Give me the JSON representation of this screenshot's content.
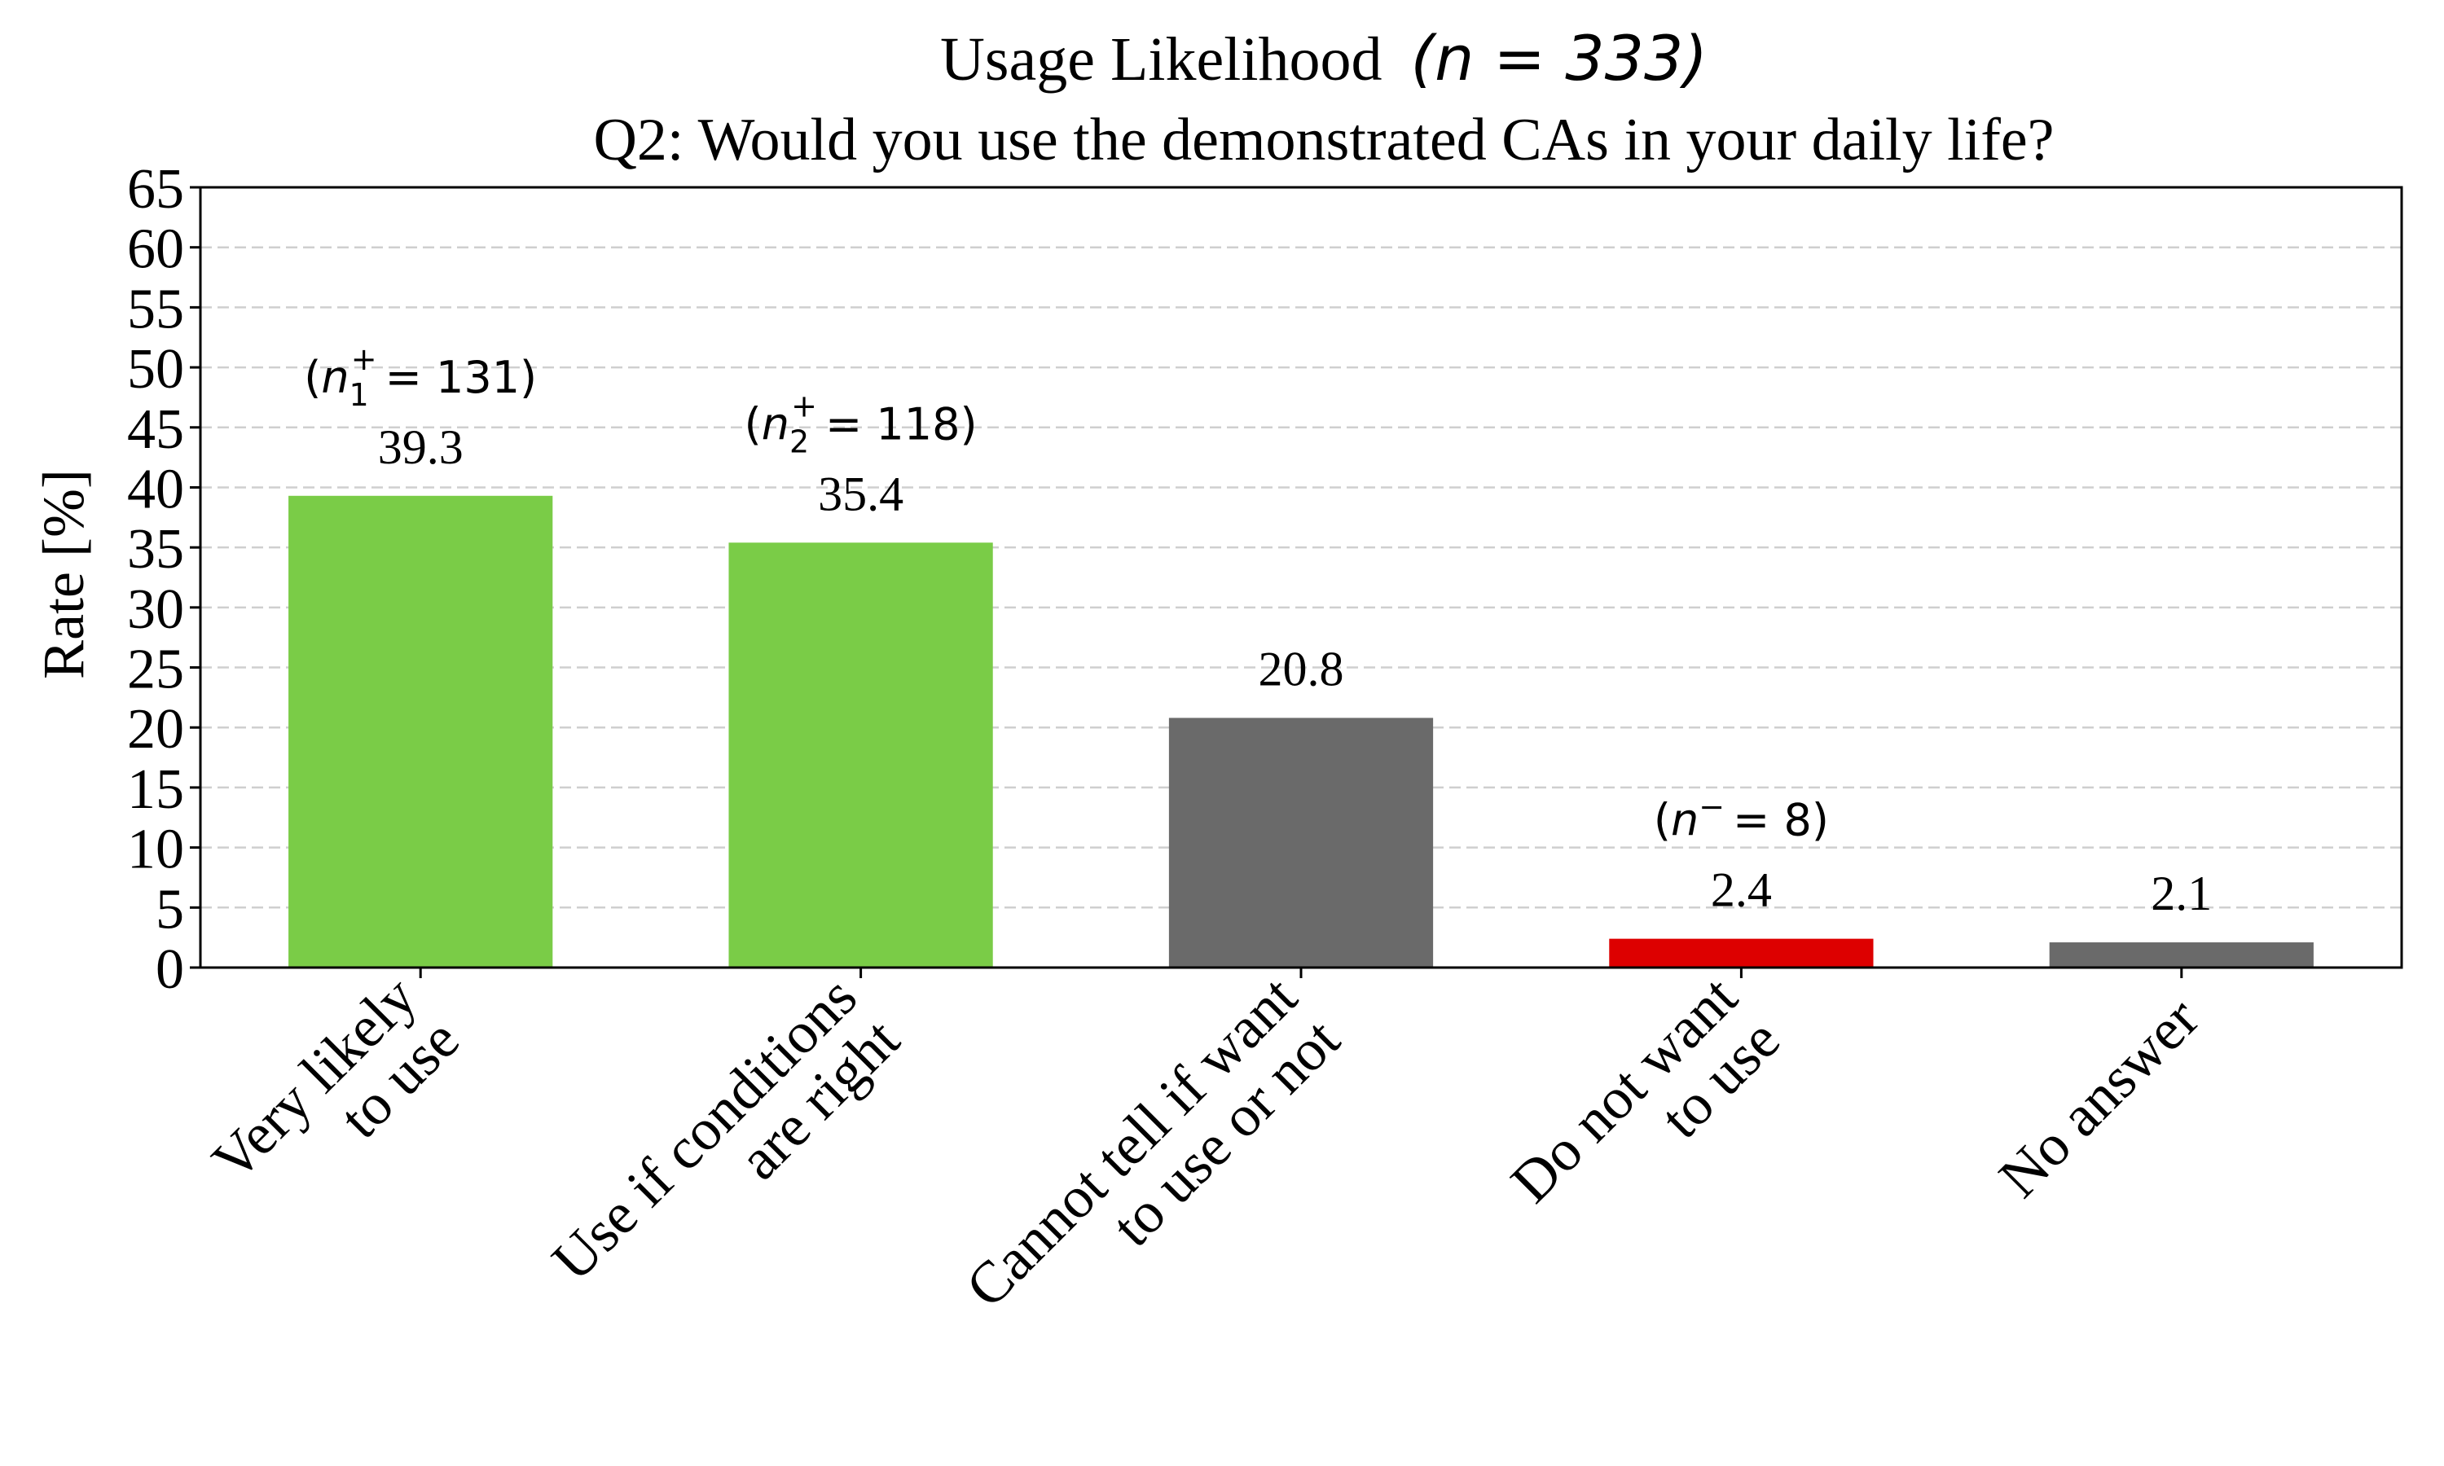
{
  "chart_data": {
    "type": "bar",
    "title_main": "Usage Likelihood",
    "title_n": "(n = 333)",
    "subtitle": "Q2: Would you use the demonstrated CAs in your daily life?",
    "ylabel": "Rate [%]",
    "xlabel": "",
    "ylim": [
      0,
      65
    ],
    "yticks": [
      0,
      5,
      10,
      15,
      20,
      25,
      30,
      35,
      40,
      45,
      50,
      55,
      60,
      65
    ],
    "grid": "horizontal dashed",
    "categories": [
      [
        "Very likely",
        "to use"
      ],
      [
        "Use if conditions",
        "are right"
      ],
      [
        "Cannot tell if want",
        "to use or not"
      ],
      [
        "Do not want",
        "to use"
      ],
      [
        "No answer"
      ]
    ],
    "values": [
      39.3,
      35.4,
      20.8,
      2.4,
      2.1
    ],
    "value_labels": [
      "39.3",
      "35.4",
      "20.8",
      "2.4",
      "2.1"
    ],
    "colors": [
      "#7acc47",
      "#7acc47",
      "#6a6a6a",
      "#dd0000",
      "#6a6a6a"
    ],
    "count_annotations": [
      {
        "n": "n",
        "sub": "1",
        "sup": "+",
        "value": "131"
      },
      {
        "n": "n",
        "sub": "2",
        "sup": "+",
        "value": "118"
      },
      null,
      {
        "n": "n",
        "sub": "",
        "sup": "−",
        "value": "8"
      },
      null
    ]
  }
}
